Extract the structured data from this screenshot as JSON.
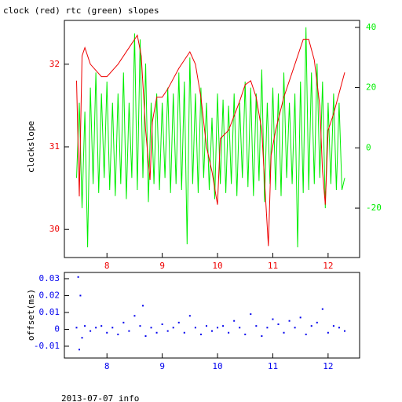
{
  "chart_data": [
    {
      "type": "line",
      "title": "clock (red) rtc (green) slopes",
      "ylabel": "clockslope",
      "xlim": [
        7.23,
        12.57
      ],
      "xticks": [
        8,
        9,
        10,
        11,
        12
      ],
      "ylim": [
        29.66,
        32.53
      ],
      "yticks": [
        30,
        31,
        32
      ],
      "y2lim": [
        -36.4,
        42.3
      ],
      "y2ticks": [
        -20,
        0,
        20,
        40
      ],
      "series": [
        {
          "color": "#00ee00",
          "axis": "y2",
          "x": [
            7.45,
            7.5,
            7.55,
            7.6,
            7.65,
            7.7,
            7.75,
            7.8,
            7.85,
            7.9,
            7.95,
            8.0,
            8.05,
            8.1,
            8.15,
            8.2,
            8.25,
            8.3,
            8.35,
            8.4,
            8.45,
            8.5,
            8.55,
            8.6,
            8.65,
            8.7,
            8.75,
            8.8,
            8.85,
            8.9,
            8.95,
            9.0,
            9.05,
            9.1,
            9.15,
            9.2,
            9.25,
            9.3,
            9.35,
            9.4,
            9.45,
            9.5,
            9.55,
            9.6,
            9.65,
            9.7,
            9.75,
            9.8,
            9.85,
            9.9,
            9.95,
            10.0,
            10.05,
            10.1,
            10.15,
            10.2,
            10.25,
            10.3,
            10.35,
            10.4,
            10.45,
            10.5,
            10.55,
            10.6,
            10.65,
            10.7,
            10.75,
            10.8,
            10.85,
            10.9,
            10.95,
            11.0,
            11.05,
            11.1,
            11.15,
            11.2,
            11.25,
            11.3,
            11.35,
            11.4,
            11.45,
            11.5,
            11.55,
            11.6,
            11.65,
            11.7,
            11.75,
            11.8,
            11.85,
            11.9,
            11.95,
            12.0,
            12.05,
            12.1,
            12.15,
            12.2,
            12.25,
            12.3
          ],
          "values": [
            -10,
            15,
            -20,
            12,
            -33,
            20,
            -12,
            25,
            -15,
            18,
            -10,
            22,
            -14,
            15,
            -16,
            18,
            -12,
            25,
            -17,
            15,
            -10,
            38,
            -14,
            36,
            -10,
            28,
            -18,
            15,
            -12,
            18,
            -14,
            15,
            -10,
            20,
            -15,
            18,
            -12,
            25,
            -14,
            22,
            -32,
            30,
            -12,
            18,
            -15,
            20,
            -10,
            15,
            -14,
            10,
            -17,
            18,
            -12,
            16,
            -15,
            14,
            -12,
            18,
            -16,
            15,
            -10,
            22,
            -13,
            20,
            -16,
            18,
            -11,
            26,
            -18,
            15,
            -12,
            20,
            -14,
            18,
            -16,
            25,
            -10,
            15,
            -12,
            18,
            -33,
            22,
            -15,
            40,
            -14,
            25,
            -12,
            28,
            -10,
            22,
            -20,
            15,
            -12,
            18,
            -14,
            15,
            -14,
            -10
          ]
        },
        {
          "color": "#ee0000",
          "axis": "y",
          "x": [
            7.45,
            7.5,
            7.55,
            7.6,
            7.7,
            7.9,
            8.0,
            8.2,
            8.4,
            8.55,
            8.62,
            8.7,
            8.78,
            8.82,
            8.9,
            9.0,
            9.1,
            9.3,
            9.5,
            9.6,
            9.7,
            9.8,
            9.9,
            10.0,
            10.05,
            10.2,
            10.4,
            10.5,
            10.6,
            10.7,
            10.8,
            10.85,
            10.92,
            10.97,
            11.05,
            11.2,
            11.4,
            11.55,
            11.65,
            11.75,
            11.85,
            11.9,
            11.95,
            12.0,
            12.1,
            12.2,
            12.3
          ],
          "values": [
            31.8,
            30.4,
            32.1,
            32.2,
            32.0,
            31.85,
            31.85,
            32.0,
            32.2,
            32.35,
            32.1,
            31.2,
            30.6,
            31.3,
            31.6,
            31.6,
            31.7,
            31.95,
            32.15,
            32.0,
            31.6,
            31.0,
            30.7,
            30.3,
            31.1,
            31.2,
            31.55,
            31.75,
            31.8,
            31.6,
            31.2,
            30.6,
            29.8,
            30.9,
            31.2,
            31.6,
            32.0,
            32.3,
            32.3,
            32.05,
            31.5,
            30.7,
            30.3,
            31.2,
            31.4,
            31.65,
            31.9
          ]
        }
      ]
    },
    {
      "type": "scatter",
      "ylabel": "offset(ms)",
      "footer": "2013-07-07 info",
      "xlim": [
        7.23,
        12.57
      ],
      "xticks": [
        8,
        9,
        10,
        11,
        12
      ],
      "ylim": [
        -0.017,
        0.0337
      ],
      "yticks": [
        -0.01,
        0,
        0.01,
        0.02,
        0.03
      ],
      "series": [
        {
          "color": "#0000ee",
          "x": [
            7.45,
            7.48,
            7.5,
            7.52,
            7.55,
            7.6,
            7.7,
            7.8,
            7.9,
            8.0,
            8.1,
            8.2,
            8.3,
            8.4,
            8.5,
            8.6,
            8.65,
            8.7,
            8.8,
            8.9,
            9.0,
            9.1,
            9.2,
            9.3,
            9.4,
            9.5,
            9.6,
            9.7,
            9.8,
            9.9,
            10.0,
            10.1,
            10.2,
            10.3,
            10.4,
            10.5,
            10.6,
            10.7,
            10.8,
            10.9,
            11.0,
            11.1,
            11.2,
            11.3,
            11.4,
            11.5,
            11.6,
            11.7,
            11.8,
            11.9,
            12.0,
            12.1,
            12.2,
            12.3
          ],
          "values": [
            0.001,
            0.031,
            -0.012,
            0.02,
            -0.005,
            0.002,
            -0.001,
            0.001,
            0.002,
            -0.002,
            0.001,
            -0.003,
            0.004,
            -0.001,
            0.008,
            0.002,
            0.014,
            -0.004,
            0.001,
            -0.002,
            0.003,
            -0.001,
            0.001,
            0.004,
            -0.002,
            0.008,
            0.001,
            -0.003,
            0.002,
            -0.001,
            0.001,
            0.002,
            -0.002,
            0.005,
            0.001,
            -0.003,
            0.009,
            0.002,
            -0.004,
            0.001,
            0.006,
            0.003,
            -0.002,
            0.005,
            0.001,
            0.007,
            -0.003,
            0.002,
            0.004,
            0.012,
            -0.002,
            0.002,
            0.001,
            -0.001
          ]
        }
      ]
    }
  ]
}
